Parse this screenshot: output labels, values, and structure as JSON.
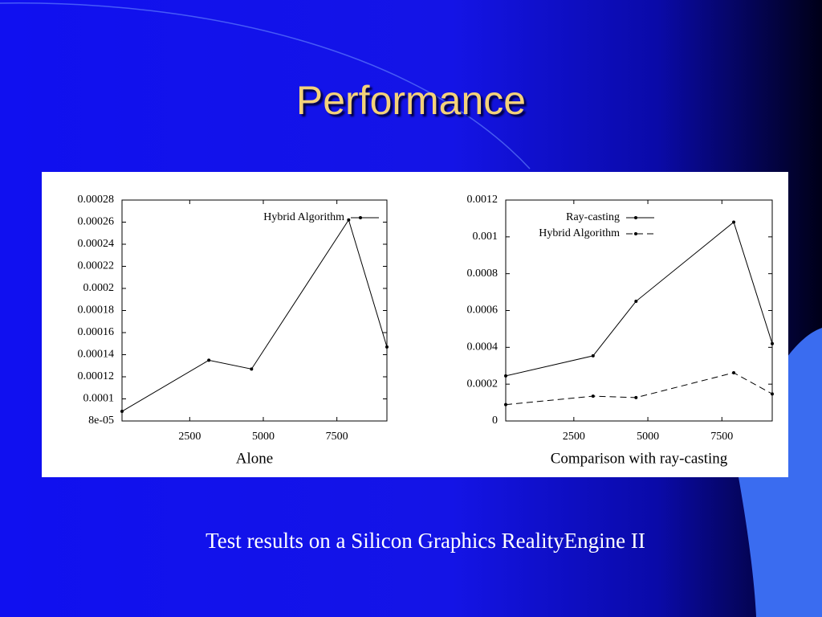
{
  "title": "Performance",
  "caption": "Test results on a Silicon Graphics RealityEngine II",
  "chart_data": [
    {
      "type": "line",
      "xlabel": "Alone",
      "xlim": [
        200,
        9200
      ],
      "xticks": [
        2500,
        5000,
        7500
      ],
      "ylim": [
        8e-05,
        0.00028
      ],
      "yticks": [
        {
          "value": 8e-05,
          "label": "8e-05"
        },
        0.0001,
        0.00012,
        0.00014,
        0.00016,
        0.00018,
        0.0002,
        0.00022,
        0.00024,
        0.00026,
        0.00028
      ],
      "legend": "top-right",
      "series": [
        {
          "name": "Hybrid Algorithm",
          "color": "#000000",
          "line_style": "solid",
          "x": [
            200,
            3150,
            4600,
            7900,
            9200
          ],
          "values": [
            8.87e-05,
            0.000135,
            0.000127,
            0.000262,
            0.000147
          ]
        }
      ]
    },
    {
      "type": "line",
      "xlabel": "Comparison with ray-casting",
      "xlim": [
        200,
        9200
      ],
      "xticks": [
        2500,
        5000,
        7500
      ],
      "ylim": [
        0,
        0.0012
      ],
      "yticks": [
        0,
        0.0002,
        0.0004,
        0.0006,
        0.0008,
        0.001,
        0.0012
      ],
      "legend": "top-left",
      "series": [
        {
          "name": "Ray-casting",
          "color": "#000000",
          "line_style": "solid",
          "x": [
            200,
            3150,
            4600,
            7900,
            9200
          ],
          "values": [
            0.000245,
            0.000354,
            0.00065,
            0.00108,
            0.00042
          ]
        },
        {
          "name": "Hybrid Algorithm",
          "color": "#000000",
          "line_style": "dashed",
          "x": [
            200,
            3150,
            4600,
            7900,
            9200
          ],
          "values": [
            8.87e-05,
            0.000135,
            0.000127,
            0.000262,
            0.000147
          ]
        }
      ]
    }
  ]
}
